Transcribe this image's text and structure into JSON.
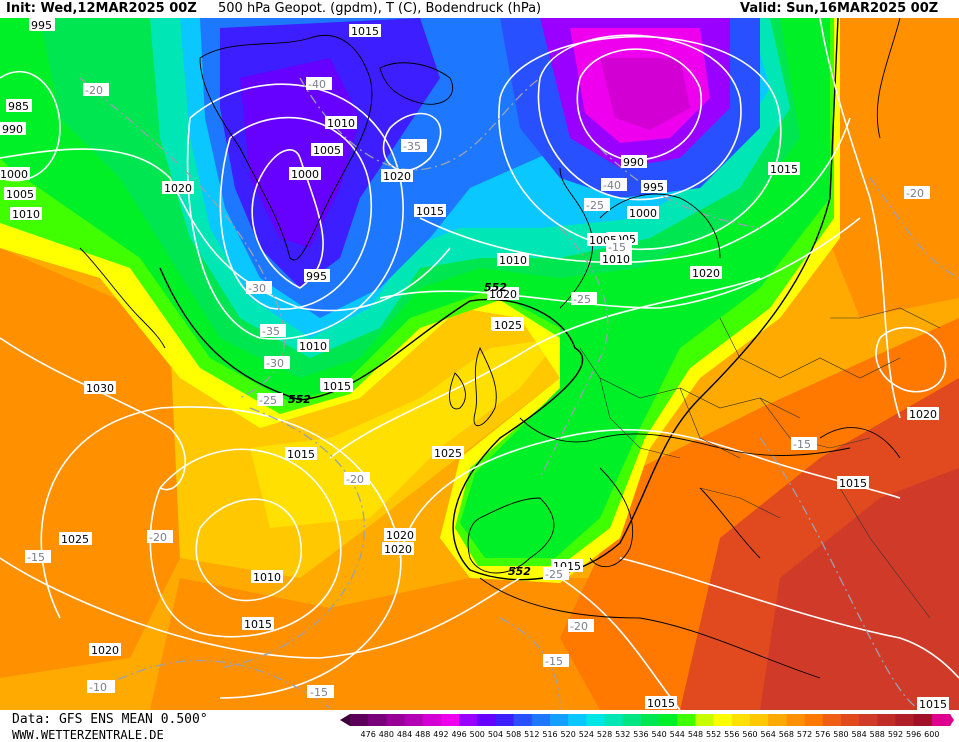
{
  "header": {
    "init": "Init: Wed,12MAR2025 00Z",
    "title": "500 hPa Geopot. (gpdm), T (C), Bodendruck (hPa)",
    "valid": "Valid: Sun,16MAR2025 00Z"
  },
  "footer": {
    "data_source": "Data: GFS ENS MEAN 0.500°",
    "url": "WWW.WETTERZENTRALE.DE"
  },
  "legend": {
    "ticks": [
      "476",
      "480",
      "484",
      "488",
      "492",
      "496",
      "500",
      "504",
      "508",
      "512",
      "516",
      "520",
      "524",
      "528",
      "532",
      "536",
      "540",
      "544",
      "548",
      "552",
      "556",
      "560",
      "564",
      "568",
      "572",
      "576",
      "580",
      "584",
      "588",
      "592",
      "596",
      "600"
    ],
    "colors": [
      "#5a005a",
      "#7a007a",
      "#960096",
      "#b400b4",
      "#d200d2",
      "#ee00ee",
      "#9a00ff",
      "#6600ff",
      "#3c1eff",
      "#2850ff",
      "#1e78ff",
      "#14a0ff",
      "#0ac8ff",
      "#00e6e6",
      "#00e6b4",
      "#00e682",
      "#00e650",
      "#00f028",
      "#40ff00",
      "#c8ff00",
      "#ffff00",
      "#ffe000",
      "#ffc800",
      "#ffaa00",
      "#ff9000",
      "#ff7800",
      "#f06014",
      "#e04a1e",
      "#d03a28",
      "#c02c28",
      "#b01e28",
      "#a01028",
      "#e00090"
    ]
  },
  "map": {
    "pressure_labels": [
      "995",
      "985",
      "990",
      "1000",
      "1005",
      "1010",
      "1020",
      "1030",
      "1025",
      "1015",
      "1010",
      "1005",
      "1000",
      "995",
      "1010",
      "1015",
      "1020",
      "1015",
      "1010",
      "1000",
      "1005",
      "990",
      "995",
      "1000",
      "1005",
      "1010",
      "1015",
      "1015",
      "1020",
      "1020",
      "1025",
      "1025",
      "1015",
      "1020",
      "1020",
      "1010",
      "1015",
      "1020",
      "1025",
      "1020",
      "1015",
      "1015",
      "1015",
      "1020",
      "1015"
    ],
    "temp_labels": [
      "-20",
      "-40",
      "-35",
      "-40",
      "-30",
      "-35",
      "-30",
      "-25",
      "-25",
      "-25",
      "-20",
      "-20",
      "-15",
      "-15",
      "-10",
      "-15",
      "-25",
      "-20",
      "-15",
      "-20",
      "-15",
      "-15",
      "-15"
    ],
    "geopot_labels": [
      "552",
      "552",
      "552"
    ]
  }
}
